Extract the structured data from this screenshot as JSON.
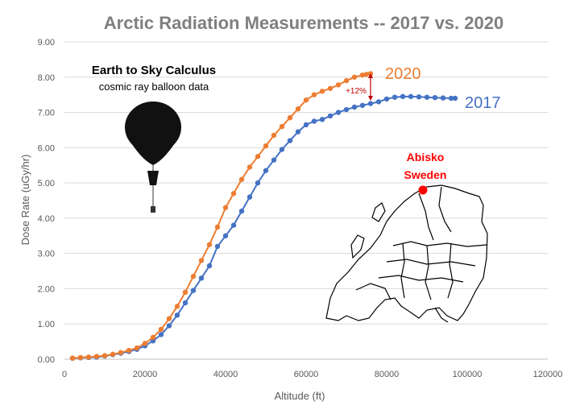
{
  "chart_data": {
    "type": "scatter",
    "title": "Arctic Radiation Measurements -- 2017 vs. 2020",
    "xlabel": "Altitude (ft)",
    "ylabel": "Dose Rate (uGy/hr)",
    "xlim": [
      0,
      120000
    ],
    "ylim": [
      0,
      9
    ],
    "xticks": [
      0,
      20000,
      40000,
      60000,
      80000,
      100000,
      120000
    ],
    "xtick_labels": [
      "0",
      "20000",
      "40000",
      "60000",
      "80000",
      "100000",
      "120000"
    ],
    "yticks": [
      0,
      1,
      2,
      3,
      4,
      5,
      6,
      7,
      8,
      9
    ],
    "ytick_labels": [
      "0.00",
      "1.00",
      "2.00",
      "3.00",
      "4.00",
      "5.00",
      "6.00",
      "7.00",
      "8.00",
      "9.00"
    ],
    "grid": "horizontal",
    "series": [
      {
        "name": "2017",
        "color": "#4472C4",
        "x": [
          2000,
          4000,
          6000,
          8000,
          10000,
          12000,
          14000,
          16000,
          18000,
          20000,
          22000,
          24000,
          26000,
          28000,
          30000,
          32000,
          34000,
          36000,
          38000,
          40000,
          42000,
          44000,
          46000,
          48000,
          50000,
          52000,
          54000,
          56000,
          58000,
          60000,
          62000,
          64000,
          66000,
          68000,
          70000,
          72000,
          74000,
          76000,
          78000,
          80000,
          82000,
          84000,
          86000,
          88000,
          90000,
          92000,
          94000,
          96000,
          97000
        ],
        "y": [
          0.03,
          0.04,
          0.05,
          0.06,
          0.09,
          0.13,
          0.17,
          0.22,
          0.28,
          0.38,
          0.52,
          0.7,
          0.95,
          1.25,
          1.6,
          1.95,
          2.3,
          2.65,
          3.2,
          3.5,
          3.8,
          4.2,
          4.6,
          5.0,
          5.35,
          5.65,
          5.95,
          6.2,
          6.45,
          6.65,
          6.75,
          6.8,
          6.9,
          7.0,
          7.08,
          7.15,
          7.2,
          7.25,
          7.3,
          7.38,
          7.43,
          7.45,
          7.45,
          7.44,
          7.43,
          7.42,
          7.41,
          7.4,
          7.4
        ]
      },
      {
        "name": "2020",
        "color": "#ED7D31",
        "x": [
          2000,
          4000,
          6000,
          8000,
          10000,
          12000,
          14000,
          16000,
          18000,
          20000,
          22000,
          24000,
          26000,
          28000,
          30000,
          32000,
          34000,
          36000,
          38000,
          40000,
          42000,
          44000,
          46000,
          48000,
          50000,
          52000,
          54000,
          56000,
          58000,
          60000,
          62000,
          64000,
          66000,
          68000,
          70000,
          72000,
          74000,
          75000,
          76000
        ],
        "y": [
          0.03,
          0.05,
          0.06,
          0.08,
          0.1,
          0.14,
          0.19,
          0.25,
          0.32,
          0.45,
          0.62,
          0.85,
          1.15,
          1.5,
          1.9,
          2.35,
          2.8,
          3.25,
          3.75,
          4.3,
          4.7,
          5.1,
          5.45,
          5.75,
          6.05,
          6.35,
          6.6,
          6.85,
          7.1,
          7.35,
          7.5,
          7.6,
          7.68,
          7.78,
          7.9,
          8.0,
          8.06,
          8.08,
          8.1
        ]
      }
    ],
    "annotations": {
      "delta_label": "+12%",
      "balloon_title": "Earth to Sky Calculus",
      "balloon_subtitle": "cosmic ray balloon data",
      "location_line1": "Abisko",
      "location_line2": "Sweden",
      "location_color": "#FF0000"
    }
  },
  "colors": {
    "title": "#7F7F7F",
    "axis_text": "#595959",
    "gridline": "#D9D9D9"
  }
}
